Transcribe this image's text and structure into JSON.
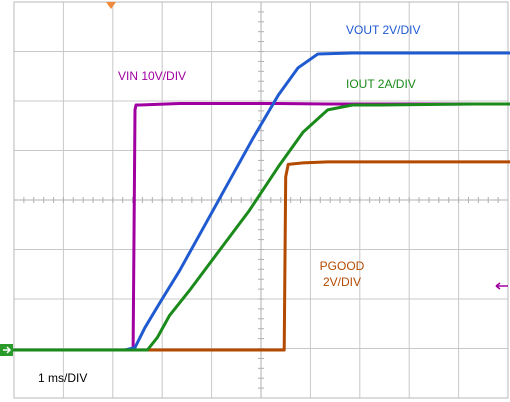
{
  "chart_data": {
    "type": "line",
    "x_unit": "ms",
    "x_per_div": 1,
    "x_range": [
      -2.35,
      7.95
    ],
    "horizontal_divisions": 10,
    "vertical_divisions": 8,
    "grid": true,
    "time_scale_label": "1 ms/DIV",
    "series": [
      {
        "name": "VIN 10V/DIV",
        "label_lines": [
          "VIN 10V/DIV"
        ],
        "color": "#a000a0",
        "unit": "div",
        "x": [
          -2.35,
          0.06,
          0.1,
          0.12,
          0.2,
          1.0,
          2.0,
          3.0,
          4.0,
          5.0,
          6.0,
          7.0,
          7.95
        ],
        "y": [
          0.0,
          0.0,
          4.85,
          4.95,
          4.95,
          4.98,
          4.98,
          4.98,
          4.97,
          4.97,
          4.97,
          4.97,
          4.97
        ]
      },
      {
        "name": "VOUT 2V/DIV",
        "label_lines": [
          "VOUT 2V/DIV"
        ],
        "color": "#1f5ad0",
        "unit": "div",
        "x": [
          -2.35,
          -0.1,
          0.1,
          0.3,
          0.6,
          1.0,
          1.5,
          2.0,
          2.5,
          3.0,
          3.4,
          3.8,
          4.5,
          5.0,
          6.0,
          7.0,
          7.95
        ],
        "y": [
          0.0,
          0.0,
          0.05,
          0.45,
          0.95,
          1.6,
          2.5,
          3.4,
          4.3,
          5.15,
          5.7,
          5.98,
          6.0,
          6.0,
          6.0,
          6.0,
          6.0
        ]
      },
      {
        "name": "IOUT 2A/DIV",
        "label_lines": [
          "IOUT 2A/DIV"
        ],
        "color": "#1a8a1a",
        "unit": "div",
        "x": [
          -2.35,
          0.35,
          0.55,
          0.8,
          1.2,
          1.8,
          2.4,
          3.0,
          3.5,
          4.0,
          4.5,
          5.0,
          6.0,
          7.0,
          7.95
        ],
        "y": [
          0.0,
          0.0,
          0.25,
          0.7,
          1.2,
          2.0,
          2.8,
          3.7,
          4.4,
          4.85,
          4.95,
          4.95,
          4.96,
          4.97,
          4.97
        ]
      },
      {
        "name": "PGOOD 2V/DIV",
        "label_lines": [
          "PGOOD",
          "2V/DIV"
        ],
        "color": "#b34a00",
        "unit": "div",
        "x": [
          -2.35,
          3.12,
          3.15,
          3.2,
          3.5,
          4.0,
          5.0,
          6.0,
          7.0,
          7.95
        ],
        "y": [
          0.0,
          0.0,
          3.5,
          3.75,
          3.78,
          3.8,
          3.8,
          3.8,
          3.8,
          3.8
        ]
      }
    ]
  },
  "colors": {
    "grid": "#c8c8c8",
    "frame": "#b8b8b8",
    "axis_center": "#b0b0b0",
    "trigger_marker": "#f08a3a",
    "ground_marker": "#2a9a2a",
    "level_arrow": "#a000a0"
  }
}
